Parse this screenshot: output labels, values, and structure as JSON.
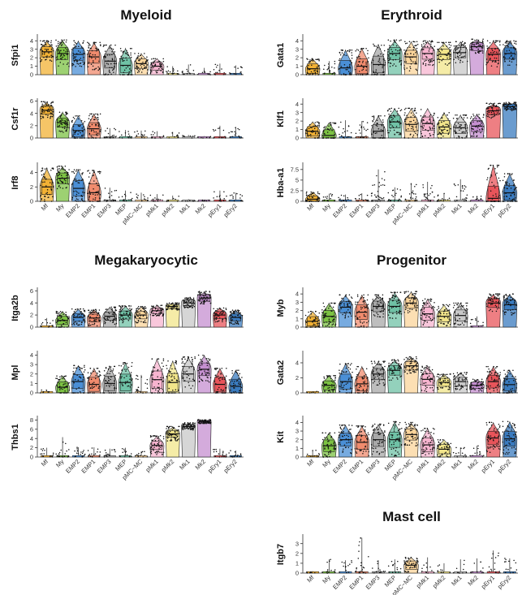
{
  "colors": {
    "Mf": "#f2b134",
    "My": "#7cc243",
    "EMP2": "#4a8fd6",
    "EMP1": "#f08b6d",
    "EMP3": "#a8a8a8",
    "MEP": "#6fc2a6",
    "pMC-MC": "#fbd49a",
    "pMk1": "#f7b4cf",
    "pMk2": "#f2e58a",
    "Mk1": "#c8c8c8",
    "Mk2": "#c58fd0",
    "pEry1": "#e8545a",
    "pEry2": "#3a7bbf"
  },
  "chart_data": [
    {
      "type": "violin",
      "title": "Myeloid",
      "categories": [
        "Mf",
        "My",
        "EMP2",
        "EMP1",
        "EMP3",
        "MEP",
        "pMC−MC",
        "pMk1",
        "pMk2",
        "Mk1",
        "Mk2",
        "pEry1",
        "pEry2"
      ],
      "color_keys": [
        "Mf",
        "My",
        "EMP2",
        "EMP1",
        "EMP3",
        "MEP",
        "pMC-MC",
        "pMk1",
        "pMk2",
        "Mk1",
        "Mk2",
        "pEry1",
        "pEry2"
      ],
      "panels": [
        {
          "gene": "Sfpi1",
          "yticks": [
            0,
            1,
            2,
            3,
            4
          ],
          "ylim": [
            0,
            4.6
          ],
          "medians": [
            2.7,
            2.5,
            2.4,
            2.1,
            1.6,
            1.1,
            1.3,
            1.0,
            0.1,
            0.05,
            0,
            0.1,
            0.1
          ],
          "maxes": [
            4.0,
            4.1,
            4.0,
            3.8,
            3.5,
            3.1,
            2.5,
            1.9,
            1.0,
            1.2,
            0.8,
            1.3,
            1.1
          ],
          "fill": [
            1,
            1,
            1,
            1,
            1,
            1,
            1,
            1,
            0.2,
            0.1,
            0,
            0.1,
            0.1
          ]
        },
        {
          "gene": "Csf1r",
          "yticks": [
            0,
            2,
            4,
            6
          ],
          "ylim": [
            0,
            6.2
          ],
          "medians": [
            4.5,
            2.5,
            1.2,
            1.5,
            0.3,
            0.1,
            0.1,
            0.1,
            0,
            0,
            0,
            0.1,
            0.1
          ],
          "maxes": [
            5.9,
            4.2,
            3.6,
            3.9,
            1.6,
            1.3,
            1.2,
            1.1,
            1.0,
            0.5,
            0.3,
            2.0,
            1.8
          ],
          "fill": [
            1,
            1,
            1,
            1,
            0.2,
            0.1,
            0.1,
            0.1,
            0,
            0,
            0,
            0.1,
            0.1
          ]
        },
        {
          "gene": "Irf8",
          "yticks": [
            0,
            2,
            4
          ],
          "ylim": [
            0,
            5.2
          ],
          "medians": [
            2.0,
            3.2,
            1.8,
            1.2,
            0.3,
            0.1,
            0.1,
            0.1,
            0,
            0,
            0,
            0.1,
            0.1
          ],
          "maxes": [
            4.6,
            4.9,
            4.4,
            4.3,
            1.9,
            1.5,
            1.2,
            1.0,
            0.8,
            0.3,
            0.2,
            1.5,
            1.2
          ],
          "fill": [
            1,
            1,
            1,
            1,
            0.2,
            0.1,
            0.1,
            0.1,
            0,
            0,
            0,
            0.1,
            0.1
          ]
        }
      ]
    },
    {
      "type": "violin",
      "title": "Erythroid",
      "categories": [
        "Mf",
        "My",
        "EMP2",
        "EMP1",
        "EMP3",
        "MEP",
        "pMC−MC",
        "pMk1",
        "pMk2",
        "Mk1",
        "Mk2",
        "pEry1",
        "pEry2"
      ],
      "color_keys": [
        "Mf",
        "My",
        "EMP2",
        "EMP1",
        "EMP3",
        "MEP",
        "pMC-MC",
        "pMk1",
        "pMk2",
        "Mk1",
        "Mk2",
        "pEry1",
        "pEry2"
      ],
      "panels": [
        {
          "gene": "Gata1",
          "yticks": [
            0,
            1,
            2,
            3,
            4
          ],
          "ylim": [
            0,
            4.6
          ],
          "medians": [
            0.7,
            0.2,
            0.8,
            1.0,
            1.2,
            2.5,
            2.1,
            2.5,
            2.4,
            2.6,
            3.3,
            2.4,
            2.5
          ],
          "maxes": [
            1.9,
            1.6,
            2.9,
            3.1,
            3.6,
            4.1,
            3.9,
            4.0,
            3.8,
            3.9,
            4.2,
            4.0,
            4.0
          ],
          "fill": [
            1,
            0.3,
            1,
            1,
            1,
            1,
            1,
            1,
            1,
            1,
            1,
            1,
            1
          ]
        },
        {
          "gene": "Klf1",
          "yticks": [
            0,
            1,
            2,
            3,
            4
          ],
          "ylim": [
            0,
            4.5
          ],
          "medians": [
            0.8,
            0.3,
            0.2,
            0.4,
            0.8,
            1.9,
            1.6,
            1.7,
            1.3,
            1.2,
            1.4,
            3.2,
            3.7
          ],
          "maxes": [
            1.9,
            1.8,
            2.1,
            2.0,
            2.6,
            3.5,
            3.5,
            3.5,
            3.0,
            2.7,
            2.8,
            4.1,
            4.2
          ],
          "fill": [
            1,
            1,
            0.2,
            0.3,
            1,
            1,
            1,
            1,
            1,
            1,
            1,
            1,
            1
          ]
        },
        {
          "gene": "Hba-a1",
          "yticks": [
            0,
            2.5,
            5,
            7.5
          ],
          "ylim": [
            0,
            8.8
          ],
          "medians": [
            0.5,
            0.1,
            0.1,
            0.1,
            0.1,
            0.2,
            0.1,
            0.1,
            0.1,
            0.05,
            0.05,
            0.7,
            2.0
          ],
          "maxes": [
            2.2,
            1.8,
            1.6,
            1.9,
            7.5,
            3.3,
            4.3,
            4.6,
            1.9,
            5.2,
            1.3,
            8.5,
            6.5
          ],
          "fill": [
            1,
            0.1,
            0.1,
            0.1,
            0.1,
            0.2,
            0.1,
            0.1,
            0.1,
            0,
            0,
            1,
            1
          ]
        }
      ]
    },
    {
      "type": "violin",
      "title": "Megakaryocytic",
      "categories": [
        "Mf",
        "My",
        "EMP2",
        "EMP1",
        "EMP3",
        "MEP",
        "pMC−MC",
        "pMk1",
        "pMk2",
        "Mk1",
        "Mk2",
        "pEry1",
        "pEry2"
      ],
      "color_keys": [
        "Mf",
        "My",
        "EMP2",
        "EMP1",
        "EMP3",
        "MEP",
        "pMC-MC",
        "pMk1",
        "pMk2",
        "Mk1",
        "Mk2",
        "pEry1",
        "pEry2"
      ],
      "panels": [
        {
          "gene": "Itga2b",
          "yticks": [
            0,
            2,
            4,
            6
          ],
          "ylim": [
            0,
            6.3
          ],
          "medians": [
            0.1,
            1.1,
            1.6,
            1.5,
            1.8,
            2.0,
            2.0,
            2.7,
            3.4,
            4.0,
            4.8,
            2.0,
            1.6
          ],
          "maxes": [
            1.5,
            2.6,
            3.0,
            2.9,
            3.3,
            3.5,
            3.4,
            3.6,
            4.0,
            4.9,
            5.9,
            3.2,
            2.8
          ],
          "fill": [
            0.1,
            1,
            1,
            1,
            1,
            1,
            1,
            1,
            1,
            1,
            1,
            1,
            1
          ]
        },
        {
          "gene": "Mpl",
          "yticks": [
            0,
            1,
            2,
            3,
            4
          ],
          "ylim": [
            0,
            4.3
          ],
          "medians": [
            0,
            0.6,
            1.2,
            0.9,
            1.0,
            1.1,
            0.2,
            1.4,
            1.1,
            2.0,
            2.5,
            0.9,
            0.7
          ],
          "maxes": [
            0.3,
            1.8,
            2.9,
            2.6,
            2.8,
            3.2,
            1.9,
            3.6,
            3.4,
            3.8,
            4.0,
            2.6,
            2.4
          ],
          "fill": [
            0,
            1,
            1,
            1,
            1,
            1,
            0.3,
            1,
            1,
            1,
            1,
            1,
            1
          ]
        },
        {
          "gene": "Thbs1",
          "yticks": [
            0,
            2,
            4,
            6,
            8
          ],
          "ylim": [
            0,
            8.6
          ],
          "medians": [
            0.1,
            0.1,
            0.5,
            0.3,
            0.3,
            0.4,
            0.1,
            2.5,
            5.0,
            6.6,
            7.6,
            0.4,
            0.3
          ],
          "maxes": [
            2.0,
            4.3,
            2.1,
            2.1,
            1.8,
            2.0,
            1.2,
            4.6,
            6.6,
            7.4,
            8.0,
            1.8,
            1.4
          ],
          "fill": [
            0.1,
            0.1,
            0.2,
            0.1,
            0.1,
            0.1,
            0.1,
            1,
            1,
            1,
            1,
            0.2,
            0.1
          ]
        }
      ]
    },
    {
      "type": "violin",
      "title": "Progenitor",
      "categories": [
        "Mf",
        "My",
        "EMP2",
        "EMP1",
        "EMP3",
        "MEP",
        "pMC−MC",
        "pMk1",
        "pMk2",
        "Mk1",
        "Mk2",
        "pEry1",
        "pEry2"
      ],
      "color_keys": [
        "Mf",
        "My",
        "EMP2",
        "EMP1",
        "EMP3",
        "MEP",
        "pMC-MC",
        "pMk1",
        "pMk2",
        "Mk1",
        "Mk2",
        "pEry1",
        "pEry2"
      ],
      "panels": [
        {
          "gene": "Myb",
          "yticks": [
            0,
            1,
            2,
            3,
            4
          ],
          "ylim": [
            0,
            4.6
          ],
          "medians": [
            0.7,
            1.3,
            2.4,
            1.8,
            2.5,
            2.5,
            2.9,
            1.6,
            1.3,
            1.4,
            0.1,
            2.9,
            2.7
          ],
          "maxes": [
            1.9,
            2.9,
            3.9,
            3.9,
            3.9,
            4.2,
            4.3,
            3.4,
            2.7,
            2.9,
            1.3,
            4.0,
            4.0
          ],
          "fill": [
            1,
            1,
            1,
            1,
            1,
            1,
            1,
            1,
            1,
            1,
            0.1,
            1,
            1
          ]
        },
        {
          "gene": "Gata2",
          "yticks": [
            0,
            2,
            4
          ],
          "ylim": [
            0,
            5.4
          ],
          "medians": [
            0,
            1.0,
            1.5,
            1.2,
            2.5,
            3.0,
            3.6,
            1.8,
            1.4,
            1.5,
            1.0,
            1.5,
            1.1
          ],
          "maxes": [
            0.2,
            2.3,
            3.9,
            3.5,
            4.2,
            4.4,
            4.8,
            3.6,
            2.5,
            2.7,
            1.8,
            3.5,
            3.0
          ],
          "fill": [
            0,
            1,
            1,
            1,
            1,
            1,
            1,
            1,
            1,
            1,
            1,
            1,
            1
          ]
        },
        {
          "gene": "Kit",
          "yticks": [
            0,
            1,
            2,
            3,
            4
          ],
          "ylim": [
            0,
            4.6
          ],
          "medians": [
            0.1,
            1.3,
            2.0,
            1.7,
            2.0,
            2.0,
            2.6,
            1.4,
            0.9,
            0.1,
            0.1,
            2.2,
            2.1
          ],
          "maxes": [
            0.8,
            2.8,
            3.7,
            3.6,
            3.8,
            4.1,
            4.0,
            3.3,
            2.0,
            1.1,
            1.3,
            4.0,
            4.1
          ],
          "fill": [
            0.1,
            1,
            1,
            1,
            1,
            1,
            1,
            1,
            1,
            0.1,
            0.1,
            1,
            1
          ]
        }
      ]
    },
    {
      "type": "violin",
      "title": "Mast cell",
      "categories": [
        "Mf",
        "My",
        "EMP2",
        "EMP1",
        "EMP3",
        "MEP",
        "pMC−MC",
        "pMk1",
        "pMk2",
        "Mk1",
        "Mk2",
        "pEry1",
        "pEry2"
      ],
      "color_keys": [
        "Mf",
        "My",
        "EMP2",
        "EMP1",
        "EMP3",
        "MEP",
        "pMC-MC",
        "pMk1",
        "pMk2",
        "Mk1",
        "Mk2",
        "pEry1",
        "pEry2"
      ],
      "panels": [
        {
          "gene": "Itgb7",
          "yticks": [
            0,
            1,
            2,
            3
          ],
          "ylim": [
            0,
            3.8
          ],
          "medians": [
            0,
            0.1,
            0.1,
            0.2,
            0.1,
            0.1,
            0.8,
            0,
            0,
            0,
            0,
            0.1,
            0.1
          ],
          "maxes": [
            0.2,
            1.4,
            1.3,
            3.6,
            1.3,
            1.4,
            1.6,
            1.6,
            1.0,
            1.4,
            1.5,
            2.3,
            1.5
          ],
          "fill": [
            0,
            0.1,
            0.1,
            0.2,
            0.1,
            0.1,
            1,
            0,
            0,
            0,
            0,
            0.1,
            0.1
          ]
        }
      ]
    }
  ]
}
